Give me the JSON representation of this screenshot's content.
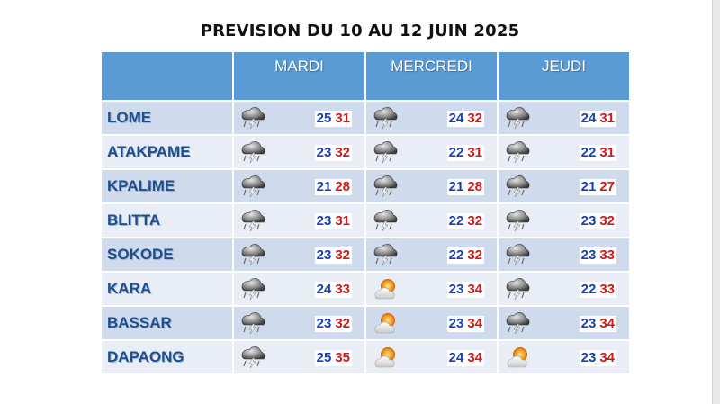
{
  "title": "PREVISION DU 10 AU 12 JUIN 2025",
  "days": [
    "MARDI",
    "MERCREDI",
    "JEUDI"
  ],
  "colors": {
    "header": "#5b9bd5",
    "row_dark": "#cfdaec",
    "row_light": "#e8edf6",
    "city": "#1f4e8a",
    "min": "#1a3fb0",
    "max": "#d01a1a"
  },
  "rows": [
    {
      "city": "LOME",
      "days": [
        {
          "icon": "storm-icon",
          "min": "25",
          "max": "31"
        },
        {
          "icon": "storm-icon",
          "min": "24",
          "max": "32"
        },
        {
          "icon": "storm-icon",
          "min": "24",
          "max": "31"
        }
      ]
    },
    {
      "city": "ATAKPAME",
      "days": [
        {
          "icon": "storm-icon",
          "min": "23",
          "max": "32"
        },
        {
          "icon": "storm-icon",
          "min": "22",
          "max": "31"
        },
        {
          "icon": "storm-icon",
          "min": "22",
          "max": "31"
        }
      ]
    },
    {
      "city": "KPALIME",
      "days": [
        {
          "icon": "storm-icon",
          "min": "21",
          "max": "28"
        },
        {
          "icon": "storm-icon",
          "min": "21",
          "max": "28"
        },
        {
          "icon": "storm-icon",
          "min": "21",
          "max": "27"
        }
      ]
    },
    {
      "city": "BLITTA",
      "days": [
        {
          "icon": "storm-icon",
          "min": "23",
          "max": "31"
        },
        {
          "icon": "storm-icon",
          "min": "22",
          "max": "32"
        },
        {
          "icon": "storm-icon",
          "min": "23",
          "max": "32"
        }
      ]
    },
    {
      "city": "SOKODE",
      "days": [
        {
          "icon": "storm-icon",
          "min": "23",
          "max": "32"
        },
        {
          "icon": "storm-icon",
          "min": "22",
          "max": "32"
        },
        {
          "icon": "storm-icon",
          "min": "23",
          "max": "33"
        }
      ]
    },
    {
      "city": "KARA",
      "days": [
        {
          "icon": "storm-icon",
          "min": "24",
          "max": "33"
        },
        {
          "icon": "sun-cloud-icon",
          "min": "23",
          "max": "34"
        },
        {
          "icon": "storm-icon",
          "min": "22",
          "max": "33"
        }
      ]
    },
    {
      "city": "BASSAR",
      "days": [
        {
          "icon": "storm-icon",
          "min": "23",
          "max": "32"
        },
        {
          "icon": "sun-cloud-icon",
          "min": "23",
          "max": "34"
        },
        {
          "icon": "storm-icon",
          "min": "23",
          "max": "34"
        }
      ]
    },
    {
      "city": "DAPAONG",
      "days": [
        {
          "icon": "storm-icon",
          "min": "25",
          "max": "35"
        },
        {
          "icon": "sun-cloud-icon",
          "min": "24",
          "max": "34"
        },
        {
          "icon": "sun-cloud-icon",
          "min": "23",
          "max": "34"
        }
      ]
    }
  ]
}
